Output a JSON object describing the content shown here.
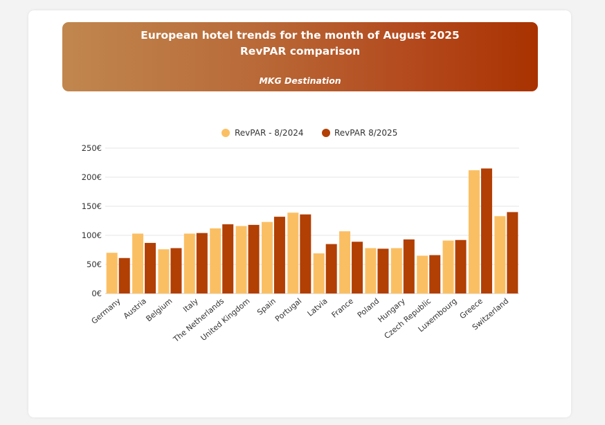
{
  "header": {
    "title_line1": "European hotel trends for the month of August 2025",
    "title_line2": "RevPAR comparison",
    "source": "MKG Destination"
  },
  "colors": {
    "series_2024": "#fbbf63",
    "series_2025": "#b23f03",
    "grid": "#e4e4e4"
  },
  "chart_data": {
    "type": "bar",
    "title": "European hotel trends for the month of August 2025 — RevPAR comparison",
    "xlabel": "",
    "ylabel": "",
    "ylim": [
      0,
      250
    ],
    "yticks": [
      "0€",
      "50€",
      "100€",
      "150€",
      "200€",
      "250€"
    ],
    "categories": [
      "Germany",
      "Austria",
      "Belgium",
      "Italy",
      "The Netherlands",
      "United Kingdom",
      "Spain",
      "Portugal",
      "Latvia",
      "France",
      "Poland",
      "Hungary",
      "Czech Republic",
      "Luxembourg",
      "Greece",
      "Switzerland"
    ],
    "series": [
      {
        "name": "RevPAR - 8/2024",
        "values": [
          70,
          103,
          76,
          103,
          112,
          116,
          123,
          139,
          69,
          107,
          78,
          78,
          65,
          91,
          212,
          133
        ]
      },
      {
        "name": "RevPAR 8/2025",
        "values": [
          61,
          87,
          78,
          104,
          119,
          118,
          132,
          136,
          85,
          89,
          77,
          93,
          66,
          92,
          215,
          140
        ]
      }
    ],
    "legend": "top-center"
  }
}
